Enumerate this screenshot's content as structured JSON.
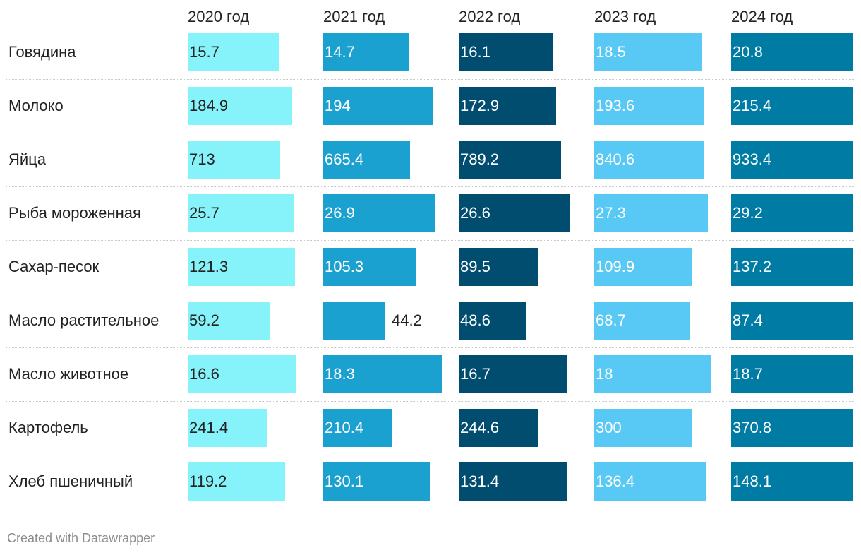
{
  "chart_data": {
    "type": "table",
    "title": "",
    "columns": [
      "2020 год",
      "2021 год",
      "2022 год",
      "2023 год",
      "2024 год"
    ],
    "series_colors": [
      "#86f3fa",
      "#1aa1d0",
      "#004d70",
      "#58c9f4",
      "#007ca4"
    ],
    "rows": [
      {
        "label": "Говядина",
        "values": [
          15.7,
          14.7,
          16.1,
          18.5,
          20.8
        ]
      },
      {
        "label": "Молоко",
        "values": [
          184.9,
          194,
          172.9,
          193.6,
          215.4
        ]
      },
      {
        "label": "Яйца",
        "values": [
          713,
          665.4,
          789.2,
          840.6,
          933.4
        ]
      },
      {
        "label": "Рыба мороженная",
        "values": [
          25.7,
          26.9,
          26.6,
          27.3,
          29.2
        ]
      },
      {
        "label": "Сахар-песок",
        "values": [
          121.3,
          105.3,
          89.5,
          109.9,
          137.2
        ]
      },
      {
        "label": "Масло растительное",
        "values": [
          59.2,
          44.2,
          48.6,
          68.7,
          87.4
        ]
      },
      {
        "label": "Масло животное",
        "values": [
          16.6,
          18.3,
          16.7,
          18,
          18.7
        ]
      },
      {
        "label": "Картофель",
        "values": [
          241.4,
          210.4,
          244.6,
          300,
          370.8
        ]
      },
      {
        "label": "Хлеб пшеничный",
        "values": [
          119.2,
          130.1,
          131.4,
          136.4,
          148.1
        ]
      }
    ],
    "value_labels": [
      [
        "15.7",
        "14.7",
        "16.1",
        "18.5",
        "20.8"
      ],
      [
        "184.9",
        "194",
        "172.9",
        "193.6",
        "215.4"
      ],
      [
        "713",
        "665.4",
        "789.2",
        "840.6",
        "933.4"
      ],
      [
        "25.7",
        "26.9",
        "26.6",
        "27.3",
        "29.2"
      ],
      [
        "121.3",
        "105.3",
        "89.5",
        "109.9",
        "137.2"
      ],
      [
        "59.2",
        "44.2",
        "48.6",
        "68.7",
        "87.4"
      ],
      [
        "16.6",
        "18.3",
        "16.7",
        "18",
        "18.7"
      ],
      [
        "241.4",
        "210.4",
        "244.6",
        "300",
        "370.8"
      ],
      [
        "119.2",
        "130.1",
        "131.4",
        "136.4",
        "148.1"
      ]
    ]
  },
  "footer": {
    "credit": "Created with Datawrapper"
  }
}
